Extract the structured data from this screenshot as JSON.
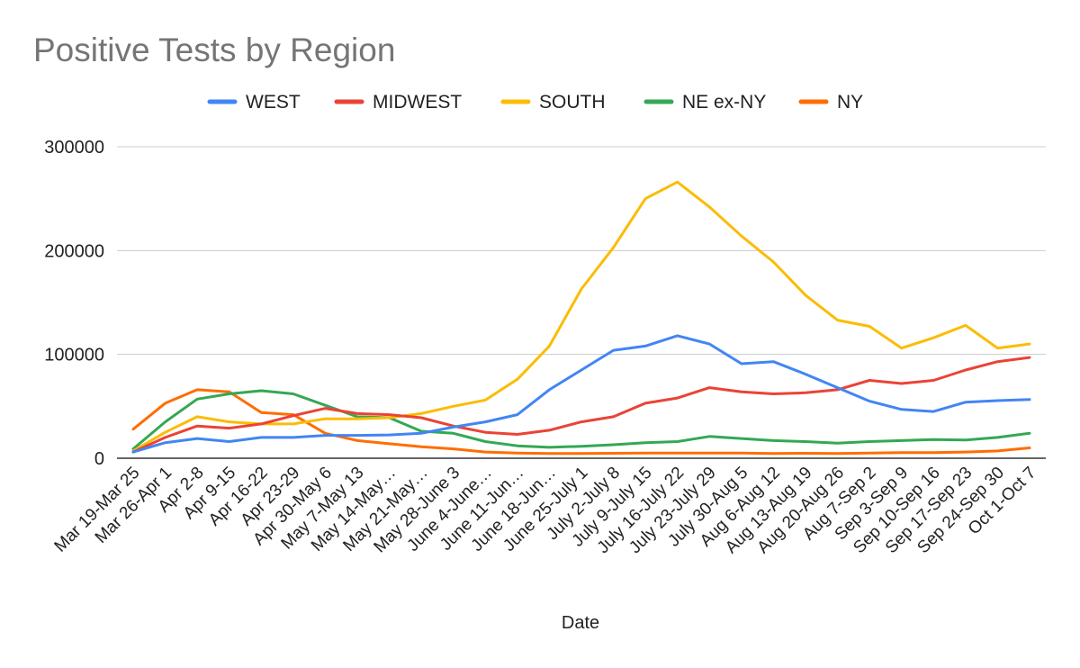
{
  "chart_data": {
    "type": "line",
    "title": "Positive Tests by Region",
    "xlabel": "Date",
    "ylabel": "",
    "ylim": [
      0,
      300000
    ],
    "yticks": [
      "0",
      "100000",
      "200000",
      "300000"
    ],
    "grid": true,
    "legend_position": "top",
    "categories": [
      "Mar 19-Mar 25",
      "Mar 26-Apr 1",
      "Apr 2-8",
      "Apr 9-15",
      "Apr 16-22",
      "Apr 23-29",
      "Apr 30-May 6",
      "May 7-May 13",
      "May 14-May…",
      "May 21-May…",
      "May 28-June 3",
      "June 4-June…",
      "June 11-Jun…",
      "June 18-Jun…",
      "June 25-July 1",
      "July 2-July 8",
      "July 9-July 15",
      "July 16-July 22",
      "July 23-July 29",
      "July 30-Aug 5",
      "Aug 6-Aug 12",
      "Aug 13-Aug 19",
      "Aug 20-Aug 26",
      "Aug 7-Sep 2",
      "Sep 3-Sep 9",
      "Sep 10-Sep 16",
      "Sep 17-Sep 23",
      "Sep 24-Sep 30",
      "Oct 1-Oct 7"
    ],
    "series": [
      {
        "name": "WEST",
        "color": "#4285f4",
        "values": [
          6000,
          15000,
          19000,
          16000,
          20000,
          20000,
          22000,
          22000,
          22500,
          24000,
          30000,
          35000,
          42000,
          66000,
          85000,
          104000,
          108000,
          118000,
          110000,
          91000,
          93000,
          81000,
          68000,
          55000,
          47000,
          45000,
          54000,
          55500,
          56500
        ]
      },
      {
        "name": "MIDWEST",
        "color": "#ea4335",
        "values": [
          6000,
          20000,
          31000,
          29000,
          33000,
          41000,
          48000,
          43000,
          42000,
          39000,
          31000,
          25000,
          23000,
          27000,
          35000,
          40000,
          53000,
          58000,
          68000,
          64000,
          62000,
          63000,
          66000,
          75000,
          72000,
          75000,
          85000,
          93000,
          97000
        ]
      },
      {
        "name": "SOUTH",
        "color": "#fbbc04",
        "values": [
          7000,
          25000,
          40000,
          35000,
          33000,
          33000,
          38000,
          38000,
          39000,
          43000,
          50000,
          56000,
          76000,
          108000,
          163000,
          203000,
          250000,
          266000,
          242000,
          214000,
          189000,
          157000,
          133000,
          127000,
          106000,
          116000,
          128000,
          106000,
          110000
        ]
      },
      {
        "name": "NE ex-NY",
        "color": "#34a853",
        "values": [
          9000,
          35000,
          57000,
          62000,
          65000,
          62000,
          51000,
          40000,
          39000,
          26000,
          24000,
          16000,
          12000,
          10500,
          11500,
          13000,
          15000,
          16000,
          21000,
          19000,
          17000,
          16000,
          14500,
          16000,
          17000,
          18000,
          17500,
          20000,
          24000
        ]
      },
      {
        "name": "NY",
        "color": "#ff6d01",
        "values": [
          28000,
          53000,
          66000,
          64000,
          44000,
          42000,
          24000,
          17000,
          14000,
          11000,
          9000,
          6000,
          5000,
          4500,
          4500,
          4800,
          5000,
          5000,
          5000,
          5000,
          4500,
          4800,
          4500,
          5000,
          5500,
          5500,
          6000,
          7000,
          10000
        ]
      }
    ]
  }
}
